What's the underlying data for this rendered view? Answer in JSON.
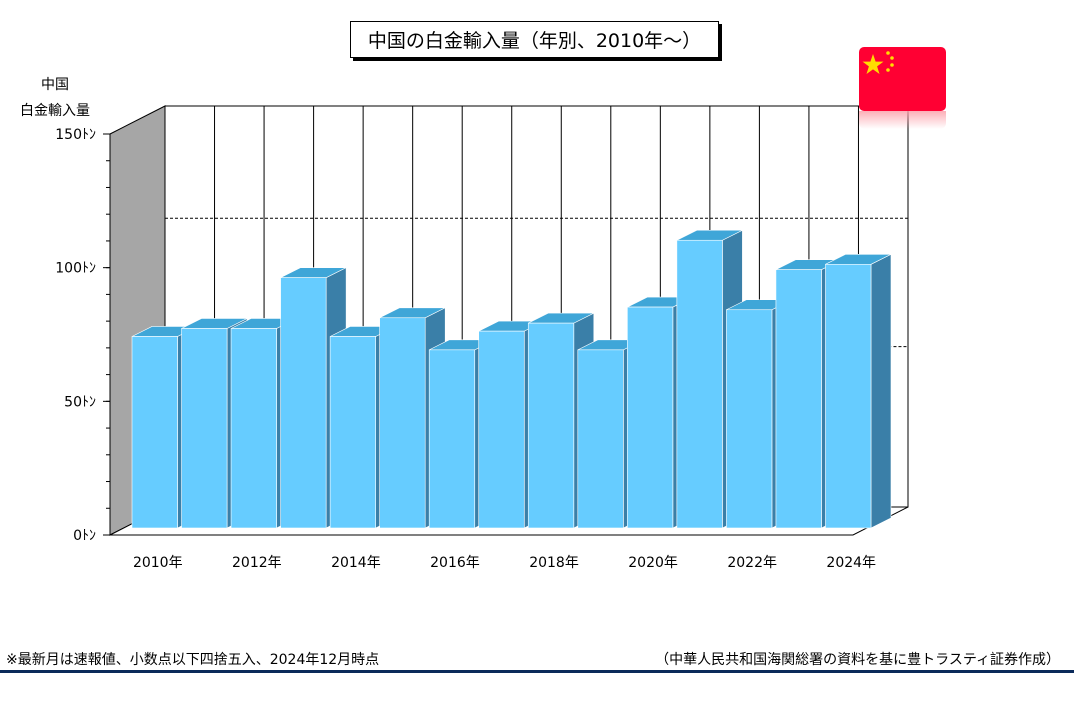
{
  "chart_data": {
    "type": "bar",
    "title": "中国の白金輸入量（年別、2010年～）",
    "ylabel_lines": [
      "中国",
      "白金輸入量"
    ],
    "xlabel": "",
    "categories": [
      "2010",
      "2011",
      "2012",
      "2013",
      "2014",
      "2015",
      "2016",
      "2017",
      "2018",
      "2019",
      "2020",
      "2021",
      "2022",
      "2023",
      "2024"
    ],
    "values": [
      78,
      81,
      81,
      100,
      78,
      85,
      73,
      80,
      83,
      73,
      89,
      114,
      88,
      103,
      105
    ],
    "x_tick_labels": [
      "2010年",
      "2012年",
      "2014年",
      "2016年",
      "2018年",
      "2020年",
      "2022年",
      "2024年"
    ],
    "y_ticks": [
      {
        "value": 0,
        "label": "0ﾄﾝ"
      },
      {
        "value": 50,
        "label": "50ﾄﾝ"
      },
      {
        "value": 100,
        "label": "100ﾄﾝ"
      },
      {
        "value": 150,
        "label": "150ﾄﾝ"
      }
    ],
    "ylim": [
      0,
      150
    ],
    "reference_lines": [
      108,
      60
    ],
    "grid": "vertical",
    "colors": {
      "bar_front": "#66ccff",
      "bar_top": "#3fa6d8",
      "bar_side": "#3a7fa8",
      "wall_left": "#a6a6a6",
      "footer_rule": "#0b2a5a"
    }
  },
  "flag": {
    "icon": "china-flag-icon",
    "colors": {
      "field": "#ff0033",
      "star": "#ffde00"
    }
  },
  "footnotes": {
    "left": "※最新月は速報値、小数点以下四捨五入、2024年12月時点",
    "right": "（中華人民共和国海関総署の資料を基に豊トラスティ証券作成）"
  }
}
